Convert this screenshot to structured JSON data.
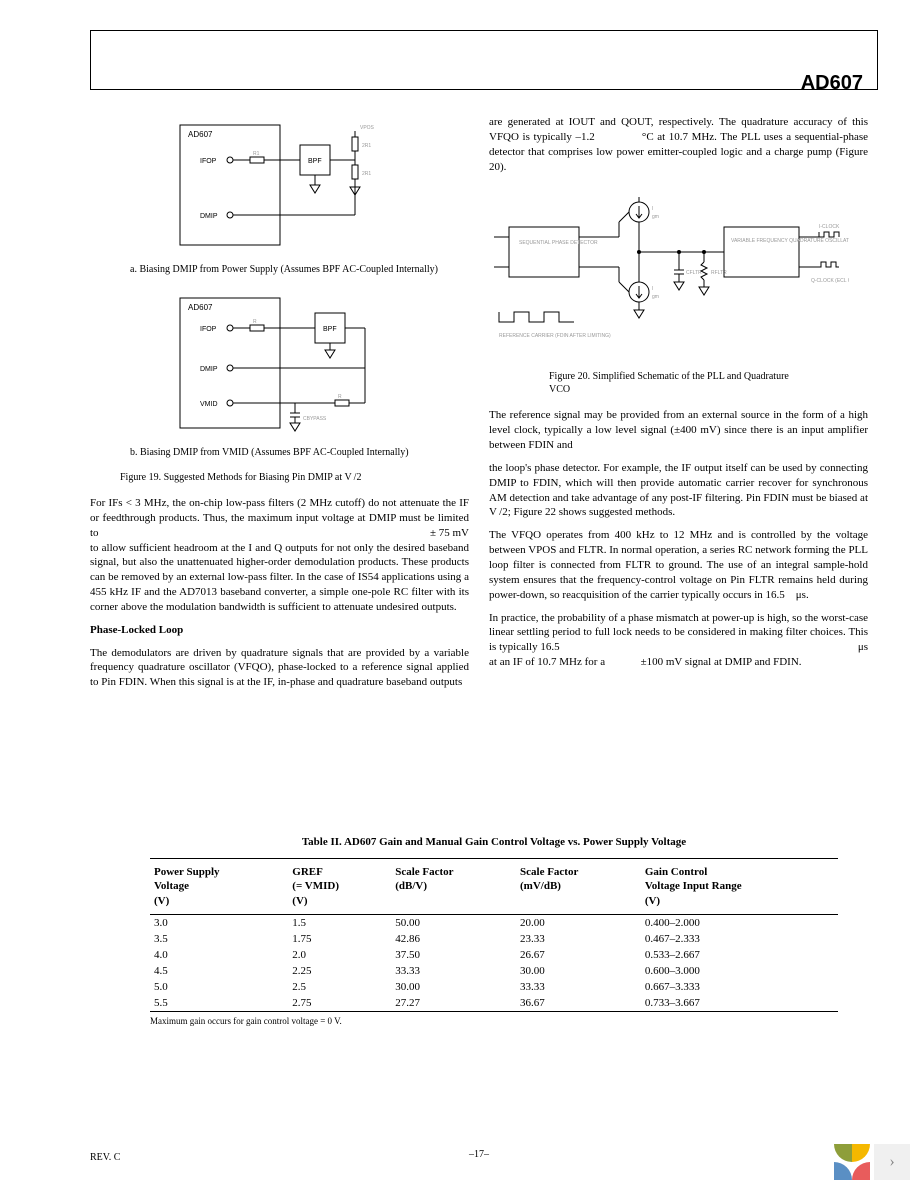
{
  "header": {
    "part_number": "AD607"
  },
  "left_column": {
    "schematic_a": {
      "chip_label": "AD607",
      "pin_ifop": "IFOP",
      "pin_dmip": "DMIP",
      "vpos": "VPOS",
      "bpf": "BPF",
      "r1": "R1",
      "r2": "2R1",
      "r3": "2R1"
    },
    "caption_a": "a. Biasing DMIP from Power Supply (Assumes BPF AC-Coupled Internally)",
    "schematic_b": {
      "chip_label": "AD607",
      "pin_ifop": "IFOP",
      "pin_dmip": "DMIP",
      "pin_vmid": "VMID",
      "bpf": "BPF",
      "r_label": "R",
      "cbypass": "CBYPASS"
    },
    "caption_b": "b. Biasing DMIP from VMID (Assumes BPF AC-Coupled Internally)",
    "figure_19_caption": "Figure 19. Suggested Methods for Biasing Pin DMIP at V /2",
    "para_1_pre": "For IFs < 3 MHz, the on-chip low-pass filters (2 MHz cutoff) do not attenuate the IF or feedthrough products. Thus, the maximum input voltage at DMIP must be limited to",
    "para_1_val": "± 75 mV",
    "para_1_post": "to allow sufficient headroom at the I and Q outputs for not only the desired baseband signal, but also the unattenuated higher-order demodulation products. These products can be removed by an external low-pass filter. In the case of IS54 applications using a 455 kHz IF and the AD7013 baseband converter, a simple one-pole RC filter with its corner above the modulation bandwidth is sufficient to attenuate undesired outputs.",
    "pll_heading": "Phase-Locked Loop",
    "para_2": "The demodulators are driven by quadrature signals that are provided by a variable frequency quadrature oscillator (VFQO), phase-locked to a reference signal applied to Pin FDIN. When this signal is at the IF, in-phase and quadrature baseband outputs"
  },
  "right_column": {
    "para_1_a": "are generated at IOUT and QOUT, respectively. The quadrature accuracy of this VFQO is typically –1.2",
    "para_1_deg": "°C at 10.7 MHz. The",
    "para_1_b": "PLL uses a sequential-phase detector that comprises low power emitter-coupled logic and a charge pump (Figure 20).",
    "schematic_20": {
      "detector": "SEQUENTIAL PHASE DETECTOR",
      "vco": "VARIABLE FREQUENCY QUADRATURE OSCILLATOR",
      "iclock": "I-CLOCK",
      "qclock": "Q-CLOCK (ECL OUTPUTS)",
      "ref": "REFERENCE CARRIER (FDIN AFTER LIMITING)",
      "i_up": "I",
      "i_dn": "I",
      "gm_up": "gm",
      "gm_dn": "gm",
      "cfltr": "CFLTR",
      "rfltr": "RFLTR"
    },
    "figure_20_caption": "Figure 20. Simplified Schematic of the PLL and Quadrature VCO",
    "para_2": "The reference signal may be provided from an external source in the form of a high level clock, typically a low level signal (±400 mV) since there is an input amplifier between FDIN and",
    "para_3": "the loop's phase detector. For example, the IF output itself can be used by connecting DMIP to FDIN, which will then provide automatic carrier recover for synchronous AM detection and take advantage of any post-IF filtering. Pin FDIN must be biased at V /2; Figure 22 shows suggested methods.",
    "para_4": "The VFQO operates from 400 kHz to 12 MHz and is controlled by the voltage between VPOS and FLTR. In normal operation, a series RC network forming the PLL loop filter is connected from FLTR to ground. The use of an integral sample-hold system ensures that the frequency-control voltage on Pin FLTR remains held during power-down, so reacquisition of the carrier typically occurs in 16.5 μs.",
    "para_5_a": "In practice, the probability of a phase mismatch at power-up is high, so the worst-case linear settling period to full lock needs to be considered in making filter choices. This is typically 16.5",
    "para_5_us": "μs",
    "para_5_b": "at an IF of 10.7 MHz for a",
    "para_5_val": "±100 mV signal at DMIP and FDIN."
  },
  "table": {
    "title": "Table II. AD607 Gain and Manual Gain Control Voltage vs. Power Supply Voltage",
    "columns": [
      "Power Supply\nVoltage\n(V)",
      "GREF\n(= VMID)\n(V)",
      "Scale Factor\n(dB/V)",
      "Scale Factor\n(mV/dB)",
      "Gain Control\nVoltage Input Range\n(V)"
    ],
    "rows": [
      [
        "3.0",
        "1.5",
        "50.00",
        "20.00",
        "0.400–2.000"
      ],
      [
        "3.5",
        "1.75",
        "42.86",
        "23.33",
        "0.467–2.333"
      ],
      [
        "4.0",
        "2.0",
        "37.50",
        "26.67",
        "0.533–2.667"
      ],
      [
        "4.5",
        "2.25",
        "33.33",
        "30.00",
        "0.600–3.000"
      ],
      [
        "5.0",
        "2.5",
        "30.00",
        "33.33",
        "0.667–3.333"
      ],
      [
        "5.5",
        "2.75",
        "27.27",
        "36.67",
        "0.733–3.667"
      ]
    ],
    "footnote": "Maximum gain occurs for gain control voltage = 0 V."
  },
  "footer": {
    "rev": "REV. C",
    "page": "–17–"
  }
}
